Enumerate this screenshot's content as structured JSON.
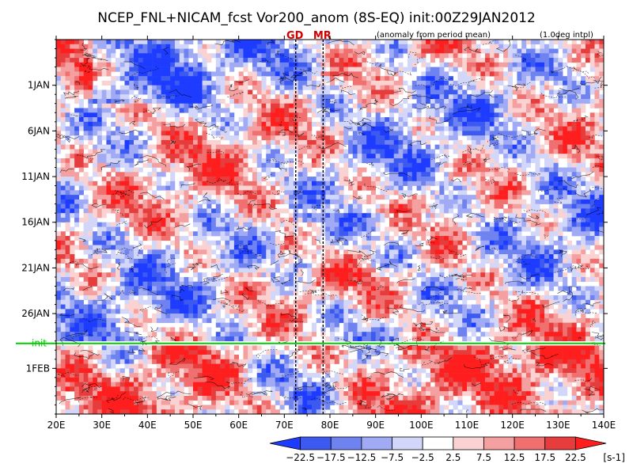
{
  "chart_data": {
    "type": "heatmap",
    "title": "NCEP_FNL+NICAM_fcst Vor200_anom (8S-EQ) init:00Z29JAN2012",
    "note_left": "(anomaly from period mean)",
    "note_right": "(1.0deg intpl)",
    "x_axis": {
      "range": [
        20,
        140
      ],
      "ticks": [
        20,
        30,
        40,
        50,
        60,
        70,
        80,
        90,
        100,
        110,
        120,
        130,
        140
      ],
      "tick_labels": [
        "20E",
        "30E",
        "40E",
        "50E",
        "60E",
        "70E",
        "80E",
        "90E",
        "100E",
        "110E",
        "120E",
        "130E",
        "140E"
      ]
    },
    "y_axis": {
      "range_days": [
        -4,
        37
      ],
      "ticks": [
        1,
        6,
        11,
        16,
        21,
        26,
        32
      ],
      "tick_labels": [
        "1JAN",
        "6JAN",
        "11JAN",
        "16JAN",
        "21JAN",
        "26JAN",
        "1FEB"
      ]
    },
    "markers": [
      {
        "label": "GD",
        "lon": 72.5
      },
      {
        "label": "MR",
        "lon": 78.5
      }
    ],
    "init_line": {
      "label": "init",
      "day": 29,
      "color": "#00cc00"
    },
    "colorbar": {
      "levels": [
        -22.5,
        -17.5,
        -12.5,
        -7.5,
        -2.5,
        2.5,
        7.5,
        12.5,
        17.5,
        22.5
      ],
      "level_labels": [
        "−22.5",
        "−17.5",
        "−12.5",
        "−7.5",
        "−2.5",
        "2.5",
        "7.5",
        "12.5",
        "17.5",
        "22.5"
      ],
      "colors": [
        "#1e3cff",
        "#3c5af0",
        "#6e82f0",
        "#a0aaf5",
        "#d2d7fa",
        "#ffffff",
        "#fad2d2",
        "#f5a0a0",
        "#f07070",
        "#e63c3c",
        "#ff1e1e"
      ],
      "unit": "[s-1]"
    },
    "grid": false,
    "legend": "colorbar-bottom"
  }
}
